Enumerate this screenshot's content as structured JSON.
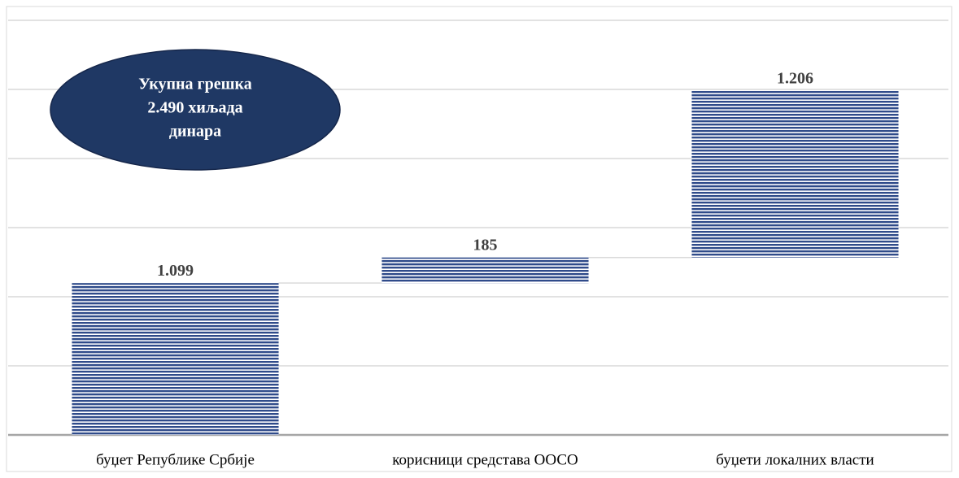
{
  "chart_data": {
    "type": "waterfall",
    "categories": [
      "буџет Републике Србије",
      "корисници средстава ООСО",
      "буџети локалних власти"
    ],
    "values": [
      1099,
      185,
      1206
    ],
    "value_labels": [
      "1.099",
      "185",
      "1.206"
    ],
    "color": "#2f4b8a",
    "ylim": [
      0,
      3000
    ],
    "yticks": [
      0,
      500,
      1000,
      1500,
      2000,
      2500,
      3000
    ],
    "grid": true,
    "annotation": [
      "Укупна грешка",
      "2.490 хиљада",
      "динара"
    ]
  }
}
